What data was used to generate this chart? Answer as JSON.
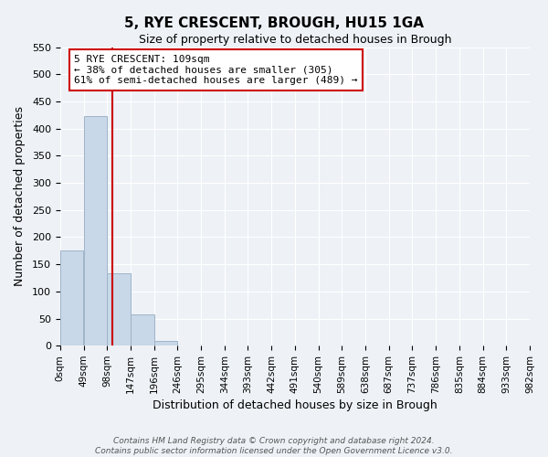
{
  "title": "5, RYE CRESCENT, BROUGH, HU15 1GA",
  "subtitle": "Size of property relative to detached houses in Brough",
  "xlabel": "Distribution of detached houses by size in Brough",
  "ylabel": "Number of detached properties",
  "bin_edges": [
    0,
    49,
    98,
    147,
    196,
    245,
    294,
    343,
    392,
    441,
    490,
    539,
    588,
    637,
    686,
    735,
    784,
    833,
    882,
    931,
    980
  ],
  "bin_labels": [
    "0sqm",
    "49sqm",
    "98sqm",
    "147sqm",
    "196sqm",
    "246sqm",
    "295sqm",
    "344sqm",
    "393sqm",
    "442sqm",
    "491sqm",
    "540sqm",
    "589sqm",
    "638sqm",
    "687sqm",
    "737sqm",
    "786sqm",
    "835sqm",
    "884sqm",
    "933sqm",
    "982sqm"
  ],
  "bar_heights": [
    175,
    423,
    133,
    57,
    8,
    1,
    0,
    0,
    0,
    1,
    0,
    0,
    0,
    0,
    0,
    0,
    0,
    0,
    0,
    1
  ],
  "bar_color": "#c8d8e8",
  "bar_edgecolor": "#a0b4c8",
  "property_line_x": 109,
  "property_line_color": "#cc0000",
  "ylim": [
    0,
    550
  ],
  "yticks": [
    0,
    50,
    100,
    150,
    200,
    250,
    300,
    350,
    400,
    450,
    500,
    550
  ],
  "annotation_text_line1": "5 RYE CRESCENT: 109sqm",
  "annotation_text_line2": "← 38% of detached houses are smaller (305)",
  "annotation_text_line3": "61% of semi-detached houses are larger (489) →",
  "footer_line1": "Contains HM Land Registry data © Crown copyright and database right 2024.",
  "footer_line2": "Contains public sector information licensed under the Open Government Licence v3.0.",
  "background_color": "#eef2f7",
  "grid_color": "#ffffff"
}
